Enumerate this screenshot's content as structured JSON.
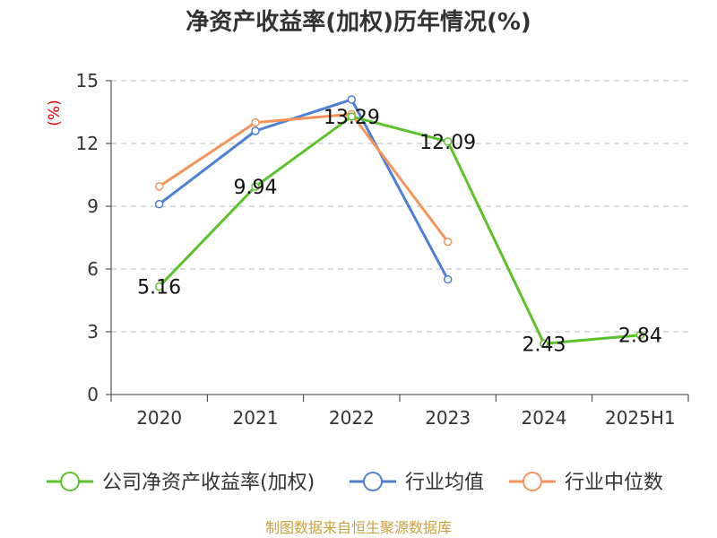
{
  "chart_data": {
    "type": "line",
    "title": "净资产收益率(加权)历年情况(%)",
    "ylabel": "(%)",
    "xlabel": "",
    "categories": [
      "2020",
      "2021",
      "2022",
      "2023",
      "2024",
      "2025H1"
    ],
    "ylim": [
      0,
      15
    ],
    "yticks": [
      0,
      3,
      6,
      9,
      12,
      15
    ],
    "grid": true,
    "legend_position": "bottom",
    "series": [
      {
        "name": "公司净资产收益率(加权)",
        "color": "#5bc32a",
        "values": [
          5.16,
          9.94,
          13.29,
          12.09,
          2.43,
          2.84
        ],
        "show_labels": true
      },
      {
        "name": "行业均值",
        "color": "#4d7fd6",
        "values": [
          9.1,
          12.6,
          14.1,
          5.5,
          null,
          null
        ],
        "show_labels": false
      },
      {
        "name": "行业中位数",
        "color": "#f5935a",
        "values": [
          9.95,
          13.0,
          13.4,
          7.3,
          null,
          null
        ],
        "show_labels": false
      }
    ],
    "data_labels": [
      "5.16",
      "9.94",
      "13.29",
      "12.09",
      "2.43",
      "2.84"
    ]
  },
  "source": "制图数据来自恒生聚源数据库"
}
